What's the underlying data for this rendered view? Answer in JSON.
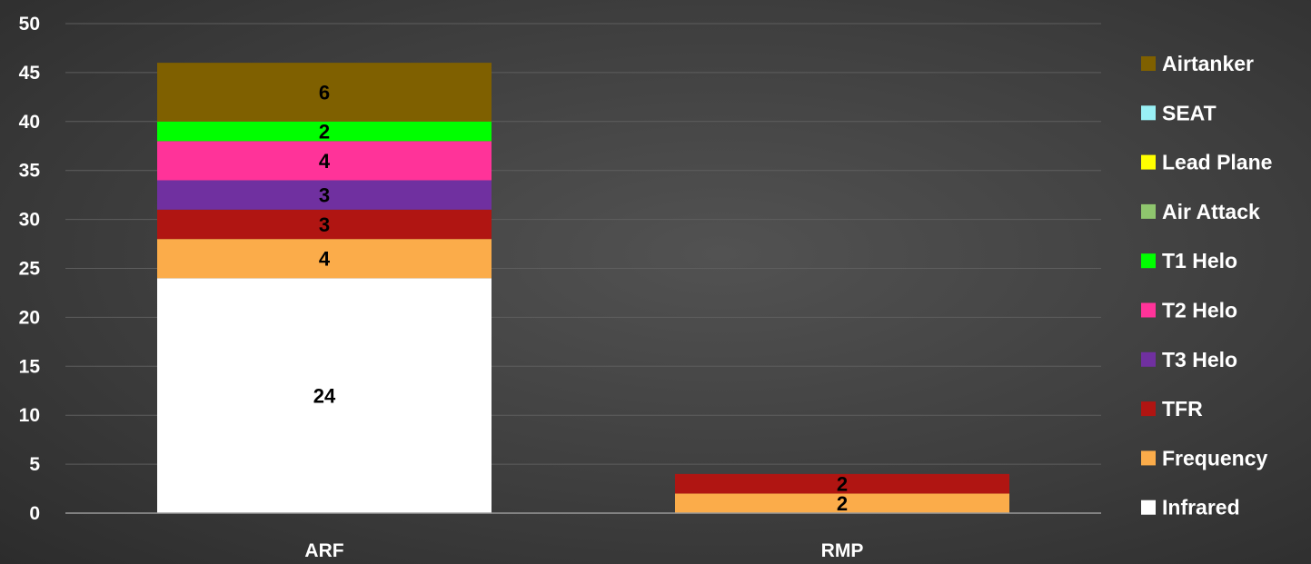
{
  "chart_data": {
    "type": "bar",
    "stacked": true,
    "categories": [
      "ARF",
      "RMP"
    ],
    "ylim": [
      0,
      50
    ],
    "yticks": [
      0,
      5,
      10,
      15,
      20,
      25,
      30,
      35,
      40,
      45,
      50
    ],
    "grid": true,
    "legend_position": "right",
    "title": "",
    "xlabel": "",
    "ylabel": "",
    "series": [
      {
        "name": "Infrared",
        "color": "#ffffff",
        "values": [
          24,
          0
        ]
      },
      {
        "name": "Frequency",
        "color": "#fbac4a",
        "values": [
          4,
          2
        ]
      },
      {
        "name": "TFR",
        "color": "#b01512",
        "values": [
          3,
          2
        ]
      },
      {
        "name": "T3 Helo",
        "color": "#7030a0",
        "values": [
          3,
          0
        ]
      },
      {
        "name": "T2 Helo",
        "color": "#ff3399",
        "values": [
          4,
          0
        ]
      },
      {
        "name": "T1 Helo",
        "color": "#00ff00",
        "values": [
          2,
          0
        ]
      },
      {
        "name": "Air Attack",
        "color": "#8fc66e",
        "values": [
          0,
          0
        ]
      },
      {
        "name": "Lead Plane",
        "color": "#ffff00",
        "values": [
          0,
          0
        ]
      },
      {
        "name": "SEAT",
        "color": "#99f0f5",
        "values": [
          0,
          0
        ]
      },
      {
        "name": "Airtanker",
        "color": "#7f6000",
        "values": [
          6,
          0
        ]
      }
    ]
  }
}
